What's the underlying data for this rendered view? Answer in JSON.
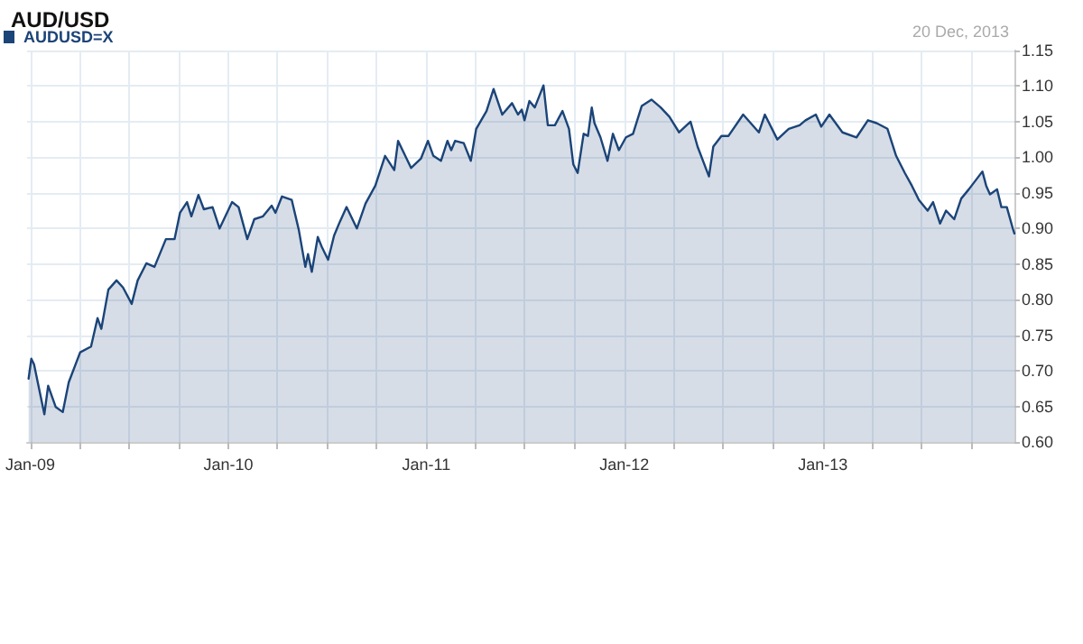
{
  "chart_data": {
    "type": "area",
    "title": "AUD/USD",
    "annotations": [
      "20 Dec, 2013"
    ],
    "x": [
      "2008-12-29",
      "2009-01-03",
      "2009-01-08",
      "2009-01-27",
      "2009-02-03",
      "2009-02-17",
      "2009-03-02",
      "2009-03-13",
      "2009-04-03",
      "2009-04-23",
      "2009-05-05",
      "2009-05-12",
      "2009-05-25",
      "2009-06-09",
      "2009-06-21",
      "2009-07-07",
      "2009-07-18",
      "2009-08-03",
      "2009-08-18",
      "2009-09-08",
      "2009-09-24",
      "2009-10-04",
      "2009-10-17",
      "2009-10-25",
      "2009-11-07",
      "2009-11-17",
      "2009-12-03",
      "2009-12-16",
      "2010-01-08",
      "2010-01-20",
      "2010-02-05",
      "2010-02-18",
      "2010-03-06",
      "2010-03-22",
      "2010-03-29",
      "2010-04-10",
      "2010-04-28",
      "2010-05-11",
      "2010-05-23",
      "2010-05-28",
      "2010-06-04",
      "2010-06-15",
      "2010-06-23",
      "2010-07-04",
      "2010-07-15",
      "2010-07-26",
      "2010-08-07",
      "2010-08-26",
      "2010-09-11",
      "2010-09-29",
      "2010-10-17",
      "2010-11-03",
      "2010-11-10",
      "2010-12-04",
      "2010-12-22",
      "2011-01-04",
      "2011-01-14",
      "2011-01-28",
      "2011-02-09",
      "2011-02-16",
      "2011-02-23",
      "2011-03-11",
      "2011-03-24",
      "2011-04-03",
      "2011-04-22",
      "2011-05-05",
      "2011-05-21",
      "2011-06-08",
      "2011-06-19",
      "2011-06-26",
      "2011-07-01",
      "2011-07-10",
      "2011-07-20",
      "2011-08-05",
      "2011-08-13",
      "2011-08-26",
      "2011-09-09",
      "2011-09-21",
      "2011-09-29",
      "2011-10-07",
      "2011-10-18",
      "2011-10-26",
      "2011-11-02",
      "2011-11-07",
      "2011-11-18",
      "2011-12-01",
      "2011-12-11",
      "2011-12-22",
      "2012-01-04",
      "2012-01-17",
      "2012-02-02",
      "2012-02-20",
      "2012-03-08",
      "2012-03-24",
      "2012-04-11",
      "2012-05-02",
      "2012-05-15",
      "2012-06-05",
      "2012-06-13",
      "2012-06-28",
      "2012-07-11",
      "2012-08-07",
      "2012-09-05",
      "2012-09-16",
      "2012-10-09",
      "2012-10-30",
      "2012-11-19",
      "2012-11-30",
      "2012-12-19",
      "2012-12-29",
      "2013-01-13",
      "2013-02-06",
      "2013-03-04",
      "2013-03-25",
      "2013-04-10",
      "2013-04-30",
      "2013-05-16",
      "2013-06-01",
      "2013-06-14",
      "2013-06-27",
      "2013-07-13",
      "2013-07-23",
      "2013-08-05",
      "2013-08-16",
      "2013-08-31",
      "2013-09-13",
      "2013-09-27",
      "2013-10-22",
      "2013-10-29",
      "2013-11-05",
      "2013-11-18",
      "2013-11-26",
      "2013-12-06",
      "2013-12-17",
      "2013-12-20"
    ],
    "series": [
      {
        "name": "AUDUSD=X",
        "color": "#1b4478",
        "values": [
          0.689,
          0.717,
          0.709,
          0.639,
          0.679,
          0.649,
          0.642,
          0.684,
          0.726,
          0.734,
          0.774,
          0.759,
          0.814,
          0.827,
          0.817,
          0.794,
          0.827,
          0.851,
          0.846,
          0.885,
          0.885,
          0.922,
          0.937,
          0.917,
          0.947,
          0.927,
          0.93,
          0.9,
          0.937,
          0.93,
          0.885,
          0.913,
          0.917,
          0.932,
          0.922,
          0.945,
          0.94,
          0.898,
          0.846,
          0.864,
          0.839,
          0.888,
          0.873,
          0.856,
          0.89,
          0.91,
          0.93,
          0.9,
          0.935,
          0.96,
          1.002,
          0.982,
          1.023,
          0.985,
          0.998,
          1.023,
          1.002,
          0.995,
          1.023,
          1.01,
          1.023,
          1.02,
          0.995,
          1.04,
          1.065,
          1.096,
          1.06,
          1.076,
          1.06,
          1.067,
          1.052,
          1.079,
          1.07,
          1.101,
          1.045,
          1.045,
          1.065,
          1.04,
          0.99,
          0.978,
          1.033,
          1.03,
          1.07,
          1.048,
          1.028,
          0.995,
          1.033,
          1.01,
          1.028,
          1.033,
          1.072,
          1.081,
          1.07,
          1.057,
          1.035,
          1.05,
          1.015,
          0.973,
          1.015,
          1.03,
          1.03,
          1.06,
          1.035,
          1.06,
          1.025,
          1.04,
          1.045,
          1.052,
          1.06,
          1.043,
          1.06,
          1.035,
          1.028,
          1.052,
          1.048,
          1.04,
          1.002,
          0.978,
          0.96,
          0.94,
          0.925,
          0.937,
          0.907,
          0.925,
          0.913,
          0.942,
          0.955,
          0.98,
          0.96,
          0.948,
          0.955,
          0.93,
          0.93,
          0.9,
          0.893
        ]
      }
    ],
    "xlim": [
      "2008-12-26",
      "2013-12-20"
    ],
    "xticks": [
      {
        "value": "2009-01-01",
        "label": "Jan-09"
      },
      {
        "value": "2009-04-01",
        "label": null
      },
      {
        "value": "2009-07-01",
        "label": null
      },
      {
        "value": "2009-10-01",
        "label": null
      },
      {
        "value": "2010-01-01",
        "label": "Jan-10"
      },
      {
        "value": "2010-04-01",
        "label": null
      },
      {
        "value": "2010-07-01",
        "label": null
      },
      {
        "value": "2010-10-01",
        "label": null
      },
      {
        "value": "2011-01-01",
        "label": "Jan-11"
      },
      {
        "value": "2011-04-01",
        "label": null
      },
      {
        "value": "2011-07-01",
        "label": null
      },
      {
        "value": "2011-10-01",
        "label": null
      },
      {
        "value": "2012-01-01",
        "label": "Jan-12"
      },
      {
        "value": "2012-04-01",
        "label": null
      },
      {
        "value": "2012-07-01",
        "label": null
      },
      {
        "value": "2012-10-01",
        "label": null
      },
      {
        "value": "2013-01-01",
        "label": "Jan-13"
      },
      {
        "value": "2013-04-01",
        "label": null
      },
      {
        "value": "2013-07-01",
        "label": null
      },
      {
        "value": "2013-10-01",
        "label": null
      }
    ],
    "ylim": [
      0.6,
      1.15
    ],
    "yticks": [
      {
        "value": 0.6,
        "label": "0.60"
      },
      {
        "value": 0.65,
        "label": "0.65"
      },
      {
        "value": 0.7,
        "label": "0.70"
      },
      {
        "value": 0.75,
        "label": "0.75"
      },
      {
        "value": 0.8,
        "label": "0.80"
      },
      {
        "value": 0.85,
        "label": "0.85"
      },
      {
        "value": 0.9,
        "label": "0.90"
      },
      {
        "value": 0.95,
        "label": "0.95"
      },
      {
        "value": 1.0,
        "label": "1.00"
      },
      {
        "value": 1.05,
        "label": "1.05"
      },
      {
        "value": 1.1,
        "label": "1.10"
      },
      {
        "value": 1.15,
        "label": "1.15"
      }
    ],
    "grid": true,
    "legend": "top left",
    "marker": "none",
    "line_style": "solid"
  }
}
